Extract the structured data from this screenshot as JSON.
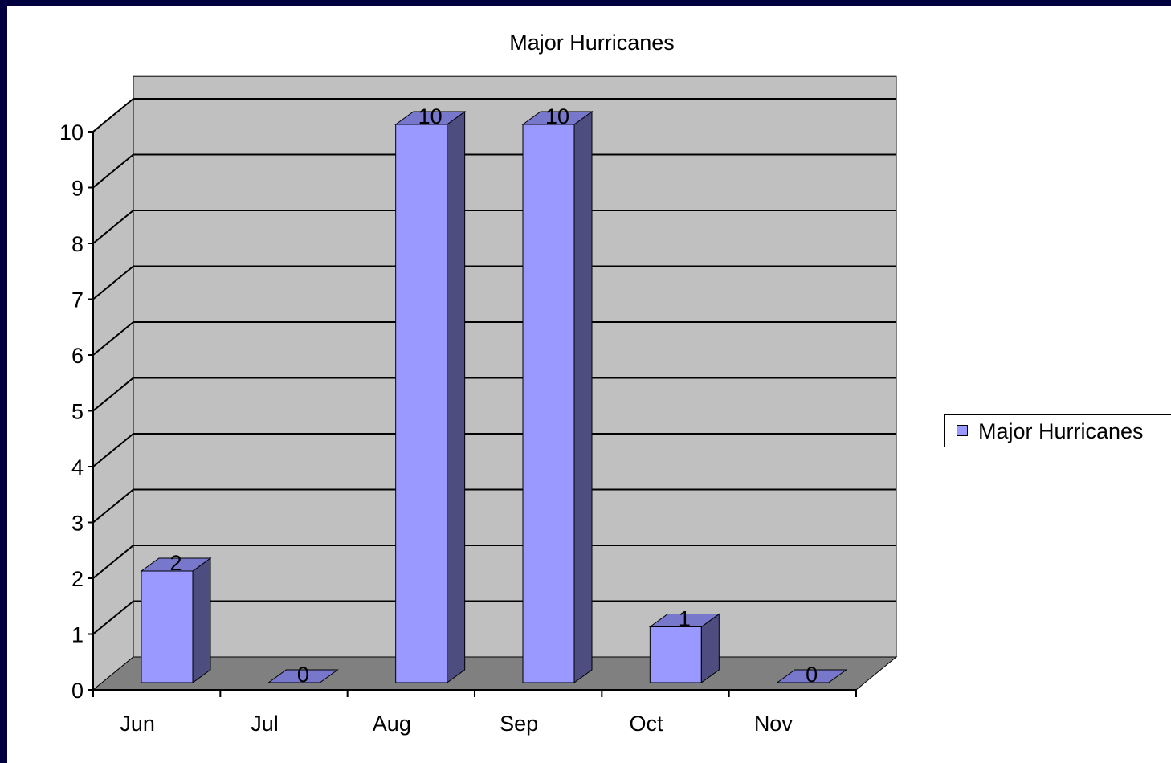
{
  "chart_data": {
    "type": "bar",
    "title": "Major Hurricanes",
    "categories": [
      "Jun",
      "Jul",
      "Aug",
      "Sep",
      "Oct",
      "Nov"
    ],
    "series": [
      {
        "name": "Major Hurricanes",
        "values": [
          2,
          0,
          10,
          10,
          1,
          0
        ]
      }
    ],
    "data_labels": [
      "2",
      "0",
      "10",
      "10",
      "1",
      "0"
    ],
    "yticks": [
      "0",
      "1",
      "2",
      "3",
      "4",
      "5",
      "6",
      "7",
      "8",
      "9",
      "10"
    ],
    "ylim": [
      0,
      10
    ],
    "grid": true,
    "legend_position": "right",
    "colors": {
      "bar_front": "#9999ff",
      "bar_side": "#4d4d80",
      "bar_top": "#7777cc",
      "back_wall": "#c0c0c0",
      "side_wall": "#c0c0c0",
      "floor": "#808080",
      "frame_border": "#000040"
    }
  }
}
